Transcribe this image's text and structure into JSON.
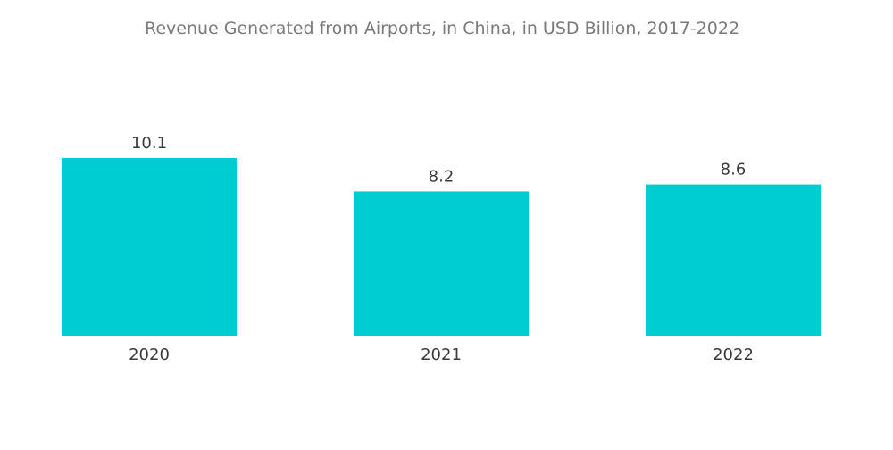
{
  "chart_data": {
    "type": "bar",
    "title": "Revenue Generated from Airports, in China, in USD Billion, 2017-2022",
    "categories": [
      "2020",
      "2021",
      "2022"
    ],
    "values": [
      10.1,
      8.2,
      8.6
    ],
    "data_labels": [
      "10.1",
      "8.2",
      "8.6"
    ],
    "xlabel": "",
    "ylabel": "",
    "ylim": [
      0,
      10.1
    ],
    "grid": false,
    "legend": "none",
    "colors": {
      "bar": "#00cdd1",
      "title": "#7a7a7a",
      "label": "#3a3a3a"
    }
  }
}
